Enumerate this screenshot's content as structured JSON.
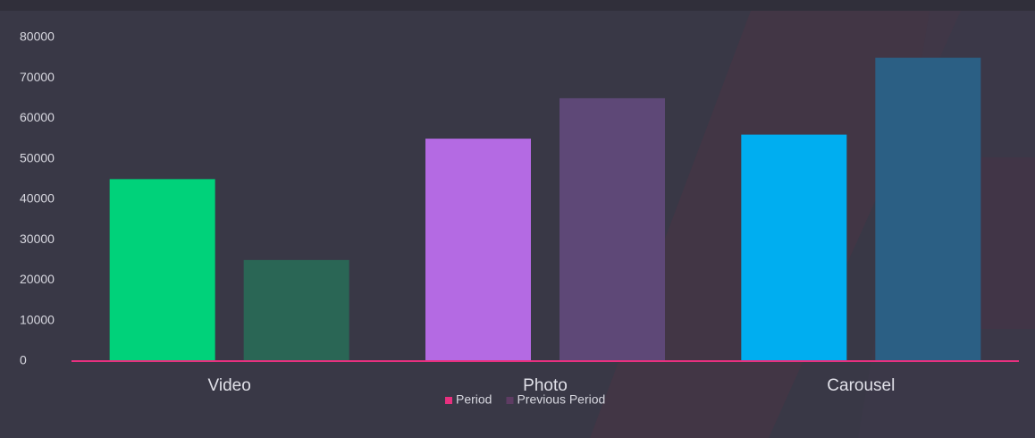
{
  "chart_data": {
    "type": "bar",
    "categories": [
      "Video",
      "Photo",
      "Carousel"
    ],
    "series": [
      {
        "name": "Period",
        "color": "#e8307f",
        "colors": [
          "#00d27a",
          "#b46ae3",
          "#00aef0"
        ],
        "values": [
          45000,
          55000,
          56000
        ]
      },
      {
        "name": "Previous Period",
        "color": "#5e3c63",
        "colors": [
          "#2a6655",
          "#5e4877",
          "#2b5f84"
        ],
        "values": [
          25000,
          65000,
          75000
        ]
      }
    ],
    "ylim": [
      0,
      80000
    ],
    "yticks": [
      0,
      10000,
      20000,
      30000,
      40000,
      50000,
      60000,
      70000,
      80000
    ],
    "legend": "bottom"
  }
}
